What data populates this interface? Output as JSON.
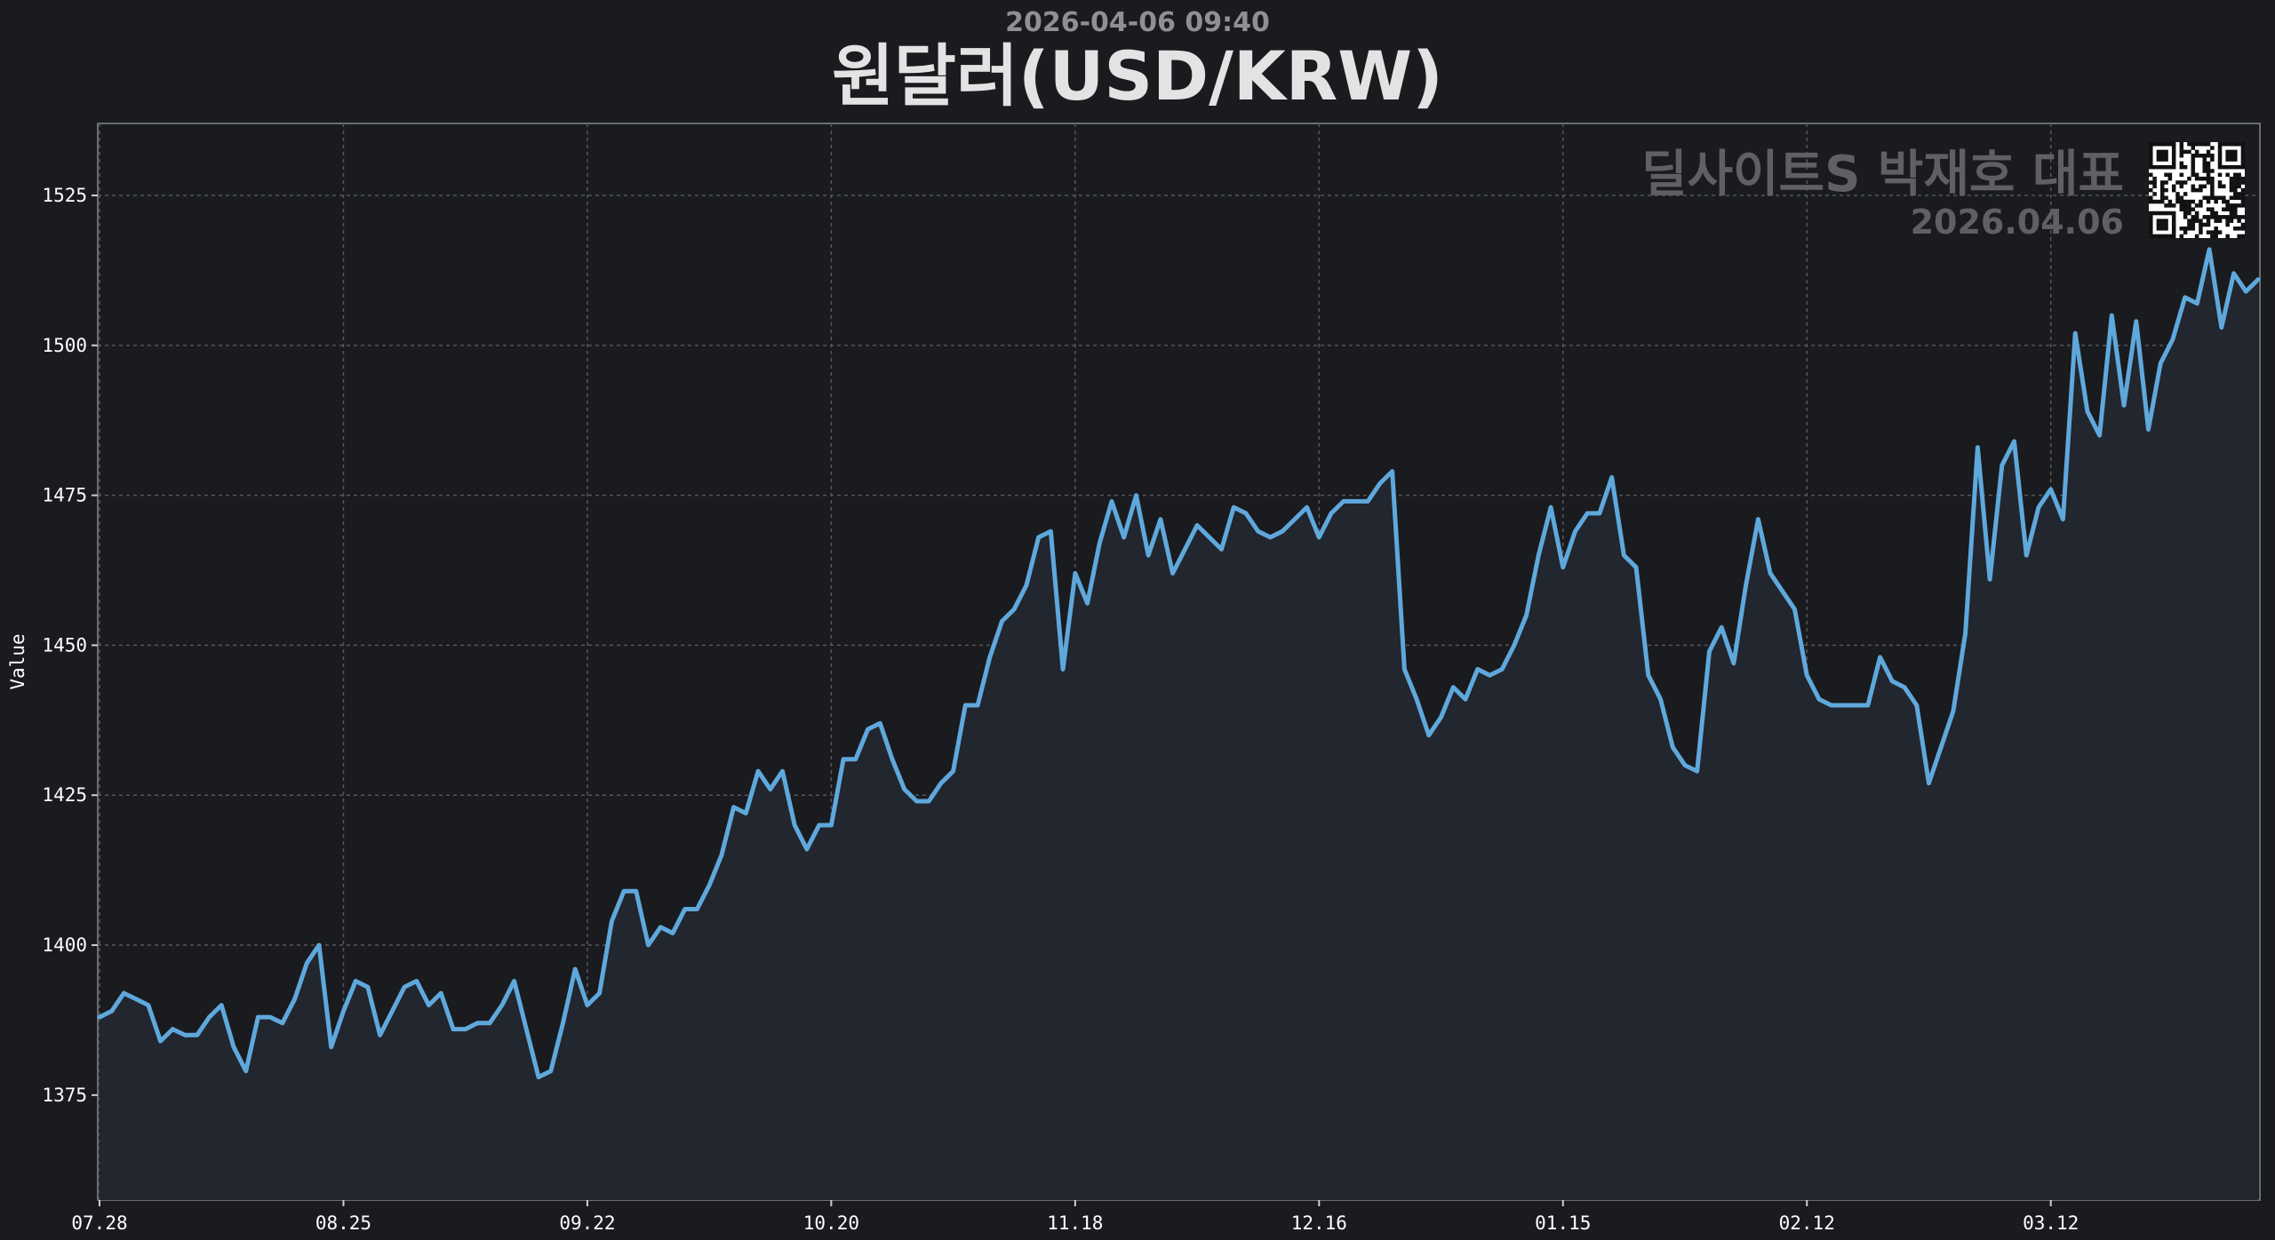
{
  "header": {
    "datetime": "2026-04-06 09:40",
    "title": "원달러(USD/KRW)"
  },
  "watermark": {
    "name": "딜사이트S 박재호 대표",
    "date": "2026.04.06"
  },
  "colors": {
    "background": "#1a1b1f",
    "plot_background": "#1a1b1f",
    "area_fill": "#22262e",
    "line": "#5fa8dc",
    "grid": "#55575c",
    "axis_frame": "#6a6c70"
  },
  "chart_data": {
    "type": "line",
    "title": "원달러(USD/KRW)",
    "subtitle": "2026-04-06 09:40",
    "xlabel": "",
    "ylabel": "Value",
    "ylim": [
      1357.5,
      1537
    ],
    "yticks": [
      1375,
      1400,
      1425,
      1450,
      1475,
      1500,
      1525
    ],
    "xticks": [
      {
        "label": "07.28",
        "index": 0
      },
      {
        "label": "08.25",
        "index": 20
      },
      {
        "label": "09.22",
        "index": 40
      },
      {
        "label": "10.20",
        "index": 60
      },
      {
        "label": "11.18",
        "index": 80
      },
      {
        "label": "12.16",
        "index": 100
      },
      {
        "label": "01.15",
        "index": 120
      },
      {
        "label": "02.12",
        "index": 140
      },
      {
        "label": "03.12",
        "index": 160
      }
    ],
    "grid": true,
    "area_fill": true,
    "series": [
      {
        "values": [
          1388,
          1389,
          1392,
          1391,
          1390,
          1384,
          1386,
          1385,
          1385,
          1388,
          1390,
          1383,
          1379,
          1388,
          1388,
          1387,
          1391,
          1397,
          1400,
          1383,
          1389,
          1394,
          1393,
          1385,
          1389,
          1393,
          1394,
          1390,
          1392,
          1386,
          1386,
          1387,
          1387,
          1390,
          1394,
          1386,
          1378,
          1379,
          1387,
          1396,
          1390,
          1392,
          1404,
          1409,
          1409,
          1400,
          1403,
          1402,
          1406,
          1406,
          1410,
          1415,
          1423,
          1422,
          1429,
          1426,
          1429,
          1420,
          1416,
          1420,
          1420,
          1431,
          1431,
          1436,
          1437,
          1431,
          1426,
          1424,
          1424,
          1427,
          1429,
          1440,
          1440,
          1448,
          1454,
          1456,
          1460,
          1468,
          1469,
          1446,
          1462,
          1457,
          1467,
          1474,
          1468,
          1475,
          1465,
          1471,
          1462,
          1466,
          1470,
          1468,
          1466,
          1473,
          1472,
          1469,
          1468,
          1469,
          1471,
          1473,
          1468,
          1472,
          1474,
          1474,
          1474,
          1477,
          1479,
          1446,
          1441,
          1435,
          1438,
          1443,
          1441,
          1446,
          1445,
          1446,
          1450,
          1455,
          1465,
          1473,
          1463,
          1469,
          1472,
          1472,
          1478,
          1465,
          1463,
          1445,
          1441,
          1433,
          1430,
          1429,
          1449,
          1453,
          1447,
          1460,
          1471,
          1462,
          1459,
          1456,
          1445,
          1441,
          1440,
          1440,
          1440,
          1440,
          1448,
          1444,
          1443,
          1440,
          1427,
          1433,
          1439,
          1452,
          1483,
          1461,
          1480,
          1484,
          1465,
          1473,
          1476,
          1471,
          1502,
          1489,
          1485,
          1505,
          1490,
          1504,
          1486,
          1497,
          1501,
          1508,
          1507,
          1516,
          1503,
          1512,
          1509,
          1511
        ]
      }
    ]
  }
}
